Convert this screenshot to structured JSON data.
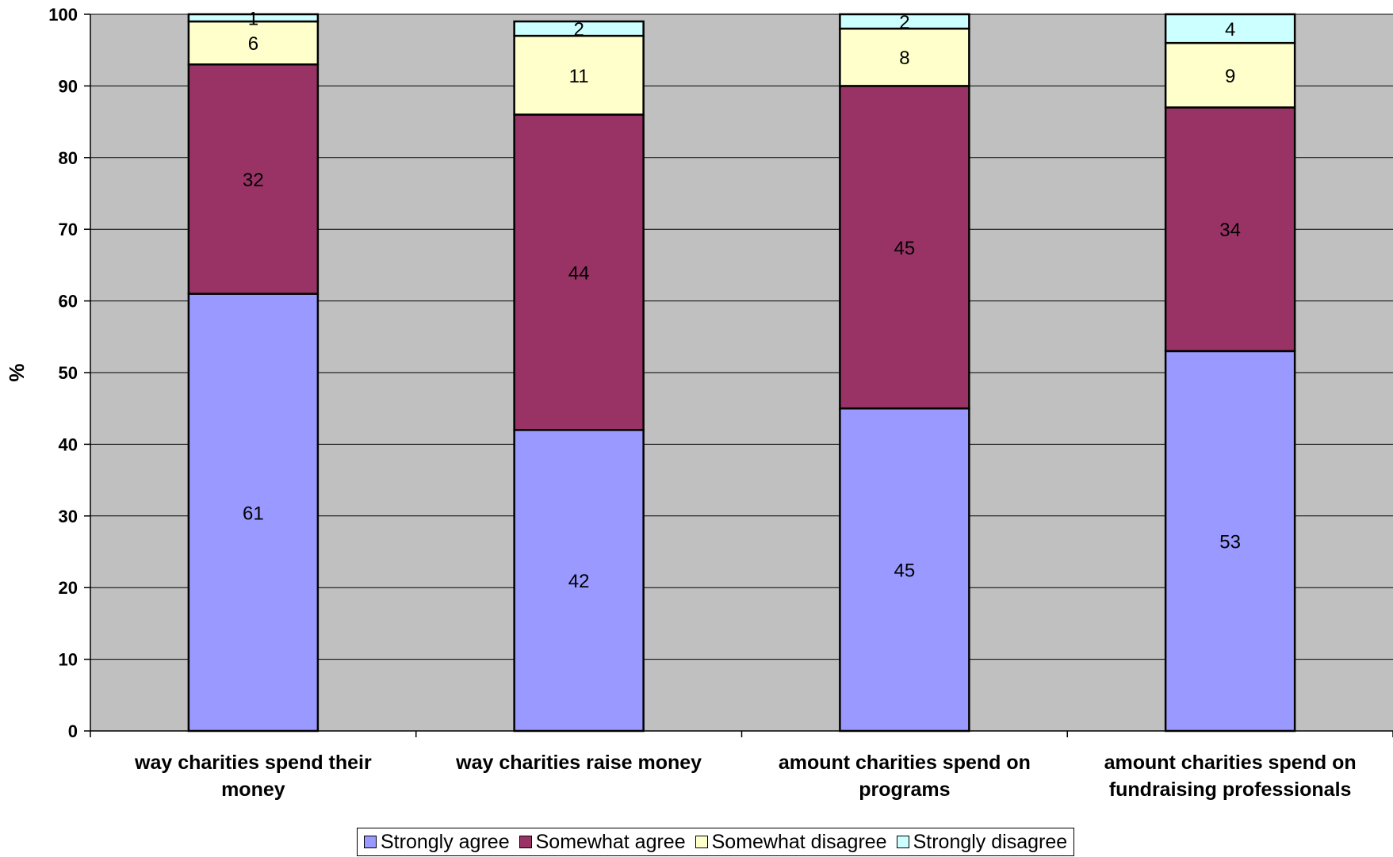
{
  "chart_data": {
    "type": "bar",
    "stacked": true,
    "title": "",
    "xlabel": "",
    "ylabel": "%",
    "ylim": [
      0,
      100
    ],
    "yticks": [
      0,
      10,
      20,
      30,
      40,
      50,
      60,
      70,
      80,
      90,
      100
    ],
    "grid": true,
    "legend_position": "bottom",
    "categories": [
      [
        "way charities spend their",
        "money"
      ],
      [
        "way charities raise money"
      ],
      [
        "amount charities spend on",
        "programs"
      ],
      [
        "amount charities spend on",
        "fundraising professionals"
      ]
    ],
    "series": [
      {
        "name": "Strongly agree",
        "color": "#9999ff",
        "values": [
          61,
          42,
          45,
          53
        ]
      },
      {
        "name": "Somewhat agree",
        "color": "#993366",
        "values": [
          32,
          44,
          45,
          34
        ]
      },
      {
        "name": "Somewhat disagree",
        "color": "#ffffcc",
        "values": [
          6,
          11,
          8,
          9
        ]
      },
      {
        "name": "Strongly disagree",
        "color": "#ccffff",
        "values": [
          1,
          2,
          2,
          4
        ]
      }
    ],
    "plot_background": "#c0c0c0"
  }
}
